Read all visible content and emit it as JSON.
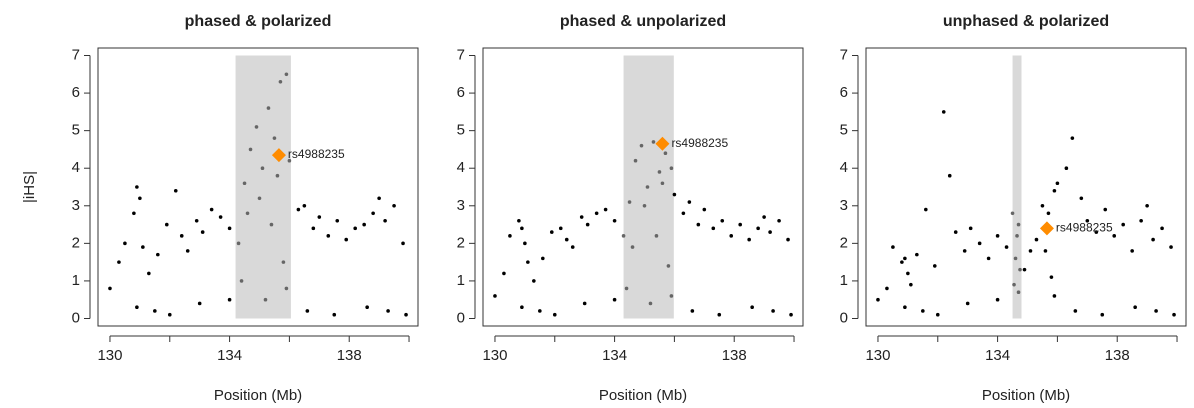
{
  "chart_data": [
    {
      "type": "scatter",
      "title": "phased & polarized",
      "xlabel": "Position (Mb)",
      "ylabel": "|iHS|",
      "xlim": [
        129.6,
        140.3
      ],
      "ylim": [
        -0.2,
        7.2
      ],
      "xticks": [
        130,
        134,
        138
      ],
      "xminor_ticks": [
        132,
        136,
        140
      ],
      "yticks": [
        0,
        1,
        2,
        3,
        4,
        5,
        6,
        7
      ],
      "color": "#000000",
      "region": [
        134.2,
        136.05
      ],
      "region_color": "#d9d9d9",
      "region_point_color": "#666666",
      "highlight": {
        "label": "rs4988235",
        "x": 135.65,
        "y": 4.35,
        "color": "#ff8c00"
      },
      "x": [
        130.0,
        130.3,
        130.5,
        130.8,
        130.9,
        131.0,
        131.1,
        131.3,
        131.6,
        131.9,
        132.2,
        132.4,
        132.6,
        132.9,
        133.1,
        133.4,
        133.7,
        134.0,
        134.3,
        134.5,
        134.7,
        134.9,
        135.1,
        135.3,
        135.5,
        135.7,
        135.9,
        136.0,
        136.3,
        136.5,
        136.8,
        137.0,
        137.3,
        137.6,
        137.9,
        138.2,
        138.5,
        138.8,
        139.0,
        139.2,
        139.5,
        139.8,
        130.9,
        131.5,
        132.0,
        133.0,
        134.0,
        136.6,
        137.5,
        138.6,
        139.3,
        139.9,
        134.4,
        134.6,
        135.0,
        135.2,
        135.4,
        135.6,
        135.8,
        135.9
      ],
      "y": [
        0.8,
        1.5,
        2.0,
        2.8,
        3.5,
        3.2,
        1.9,
        1.2,
        1.7,
        2.5,
        3.4,
        2.2,
        1.8,
        2.6,
        2.3,
        2.9,
        2.7,
        2.4,
        2.0,
        3.6,
        4.5,
        5.1,
        4.0,
        5.6,
        4.8,
        6.3,
        6.5,
        4.2,
        2.9,
        3.0,
        2.4,
        2.7,
        2.2,
        2.6,
        2.1,
        2.4,
        2.5,
        2.8,
        3.2,
        2.6,
        3.0,
        2.0,
        0.3,
        0.2,
        0.1,
        0.4,
        0.5,
        0.2,
        0.1,
        0.3,
        0.2,
        0.1,
        1.0,
        2.8,
        3.2,
        0.5,
        2.5,
        3.8,
        1.5,
        0.8
      ]
    },
    {
      "type": "scatter",
      "title": "phased & unpolarized",
      "xlabel": "Position (Mb)",
      "xlim": [
        129.6,
        140.3
      ],
      "ylim": [
        -0.2,
        7.2
      ],
      "xticks": [
        130,
        134,
        138
      ],
      "xminor_ticks": [
        132,
        136,
        140
      ],
      "yticks": [
        0,
        1,
        2,
        3,
        4,
        5,
        6,
        7
      ],
      "color": "#000000",
      "region": [
        134.3,
        135.98
      ],
      "region_color": "#d9d9d9",
      "region_point_color": "#666666",
      "highlight": {
        "label": "rs4988235",
        "x": 135.6,
        "y": 4.65,
        "color": "#ff8c00"
      },
      "x": [
        130.0,
        130.3,
        130.5,
        130.8,
        130.9,
        131.0,
        131.1,
        131.3,
        131.6,
        131.9,
        132.2,
        132.4,
        132.6,
        132.9,
        133.1,
        133.4,
        133.7,
        134.0,
        134.3,
        134.5,
        134.7,
        134.9,
        135.1,
        135.3,
        135.5,
        135.7,
        135.9,
        136.0,
        136.3,
        136.5,
        136.8,
        137.0,
        137.3,
        137.6,
        137.9,
        138.2,
        138.5,
        138.8,
        139.0,
        139.2,
        139.5,
        139.8,
        130.9,
        131.5,
        132.0,
        133.0,
        134.0,
        136.6,
        137.5,
        138.6,
        139.3,
        139.9,
        134.4,
        134.6,
        135.0,
        135.2,
        135.4,
        135.6,
        135.8,
        135.9
      ],
      "y": [
        0.6,
        1.2,
        2.2,
        2.6,
        2.4,
        2.0,
        1.5,
        1.0,
        1.6,
        2.3,
        2.4,
        2.1,
        1.9,
        2.7,
        2.5,
        2.8,
        2.9,
        2.6,
        2.2,
        3.1,
        4.2,
        4.6,
        3.5,
        4.7,
        3.9,
        4.4,
        4.0,
        3.3,
        2.8,
        3.1,
        2.5,
        2.9,
        2.4,
        2.6,
        2.2,
        2.5,
        2.1,
        2.4,
        2.7,
        2.3,
        2.6,
        2.1,
        0.3,
        0.2,
        0.1,
        0.4,
        0.5,
        0.2,
        0.1,
        0.3,
        0.2,
        0.1,
        0.8,
        1.9,
        3.0,
        0.4,
        2.2,
        3.6,
        1.4,
        0.6
      ]
    },
    {
      "type": "scatter",
      "title": "unphased & polarized",
      "xlabel": "Position (Mb)",
      "xlim": [
        129.6,
        140.3
      ],
      "ylim": [
        -0.2,
        7.2
      ],
      "xticks": [
        130,
        134,
        138
      ],
      "xminor_ticks": [
        132,
        136,
        140
      ],
      "yticks": [
        0,
        1,
        2,
        3,
        4,
        5,
        6,
        7
      ],
      "color": "#000000",
      "region": [
        134.5,
        134.8
      ],
      "region_color": "#d9d9d9",
      "region_point_color": "#666666",
      "highlight": {
        "label": "rs4988235",
        "x": 135.65,
        "y": 2.4,
        "color": "#ff8c00"
      },
      "x": [
        130.0,
        130.3,
        130.5,
        130.8,
        130.9,
        131.0,
        131.1,
        131.3,
        131.6,
        131.9,
        132.2,
        132.4,
        132.6,
        132.9,
        133.1,
        133.4,
        133.7,
        134.0,
        134.3,
        134.5,
        134.7,
        134.9,
        135.1,
        135.3,
        135.5,
        135.7,
        135.9,
        136.0,
        136.3,
        136.5,
        136.8,
        137.0,
        137.3,
        137.6,
        137.9,
        138.2,
        138.5,
        138.8,
        139.0,
        139.2,
        139.5,
        139.8,
        130.9,
        131.5,
        132.0,
        133.0,
        134.0,
        136.6,
        137.5,
        138.6,
        139.3,
        139.9,
        134.55,
        134.6,
        134.65,
        134.7,
        134.75,
        135.6,
        135.8,
        135.9
      ],
      "y": [
        0.5,
        0.8,
        1.9,
        1.5,
        1.6,
        1.2,
        0.9,
        1.7,
        2.9,
        1.4,
        5.5,
        3.8,
        2.3,
        1.8,
        2.4,
        2.0,
        1.6,
        2.2,
        1.9,
        2.8,
        2.5,
        1.3,
        1.8,
        2.1,
        3.0,
        2.8,
        3.4,
        3.6,
        4.0,
        4.8,
        3.2,
        2.6,
        2.3,
        2.9,
        2.2,
        2.5,
        1.8,
        2.6,
        3.0,
        2.1,
        2.4,
        1.9,
        0.3,
        0.2,
        0.1,
        0.4,
        0.5,
        0.2,
        0.1,
        0.3,
        0.2,
        0.1,
        0.9,
        1.6,
        2.2,
        0.7,
        1.3,
        1.8,
        1.1,
        0.6
      ]
    }
  ]
}
